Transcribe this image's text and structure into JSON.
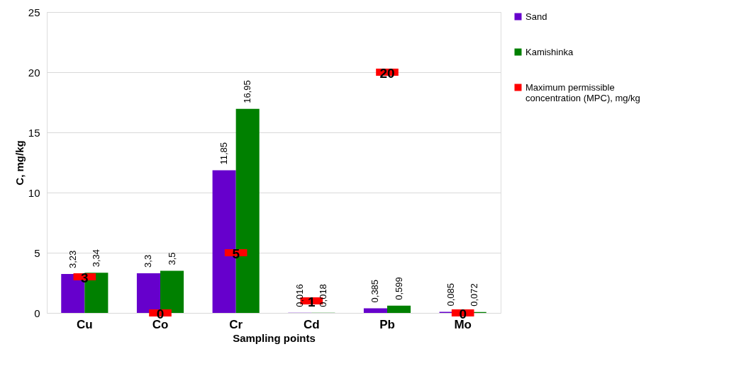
{
  "chart_data": {
    "type": "bar",
    "xlabel": "Sampling points",
    "ylabel": "C, mg/kg",
    "categories": [
      "Cu",
      "Co",
      "Cr",
      "Cd",
      "Pb",
      "Mo"
    ],
    "series": [
      {
        "name": "Sand",
        "color": "#6600cc",
        "values": [
          3.23,
          3.3,
          11.85,
          0.016,
          0.385,
          0.085
        ],
        "value_labels": [
          "3,23",
          "3,3",
          "11,85",
          "0,016",
          "0,385",
          "0,085"
        ]
      },
      {
        "name": "Kamishinka",
        "color": "#008000",
        "values": [
          3.34,
          3.5,
          16.95,
          0.018,
          0.599,
          0.072
        ],
        "value_labels": [
          "3,34",
          "3,5",
          "16,95",
          "0,018",
          "0,599",
          "0,072"
        ]
      },
      {
        "name": "Maximum permissible concentration (MPC), mg/kg",
        "type": "scatter",
        "marker": "square",
        "color": "#ff0000",
        "values": [
          3,
          0,
          5,
          1,
          20,
          0
        ],
        "value_labels": [
          "3",
          "0",
          "5",
          "1",
          "20",
          "0"
        ]
      }
    ],
    "ylim": [
      0,
      25
    ],
    "yticks": [
      0,
      5,
      10,
      15,
      20,
      25
    ],
    "grid": "y",
    "legend": "right"
  }
}
